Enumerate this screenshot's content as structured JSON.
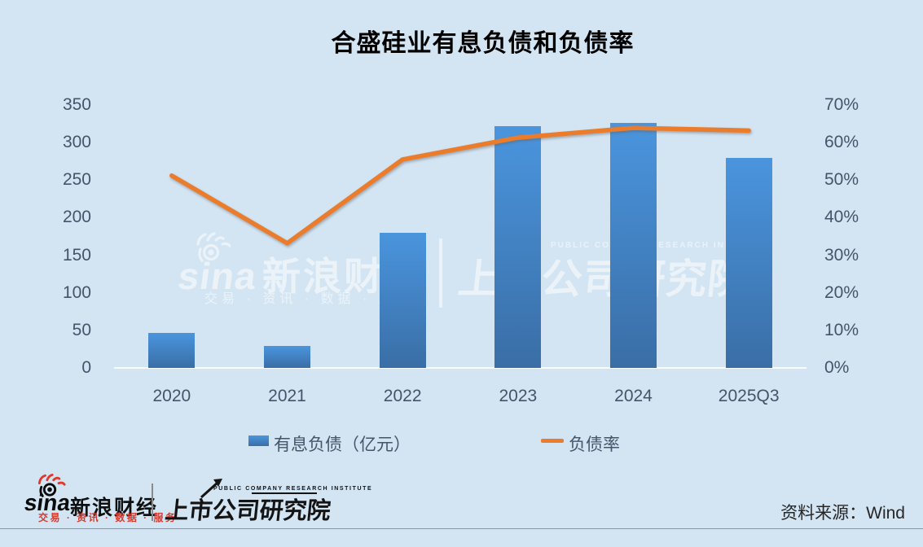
{
  "title": "合盛硅业有息负债和负债率",
  "chart_data": {
    "type": "combo",
    "categories": [
      "2020",
      "2021",
      "2022",
      "2023",
      "2024",
      "2025Q3"
    ],
    "series": [
      {
        "name": "有息负债（亿元）",
        "type": "bar",
        "axis": "left",
        "values": [
          47,
          29,
          180,
          322,
          326,
          280
        ]
      },
      {
        "name": "负债率",
        "type": "line",
        "axis": "right",
        "unit": "%",
        "values": [
          51.2,
          33.2,
          55.5,
          61.3,
          63.9,
          63.2
        ]
      }
    ],
    "left_axis": {
      "min": 0,
      "max": 350,
      "step": 50,
      "tick_labels": [
        "0",
        "50",
        "100",
        "150",
        "200",
        "250",
        "300",
        "350"
      ]
    },
    "right_axis": {
      "min": 0,
      "max": 70,
      "step": 10,
      "tick_labels": [
        "0%",
        "10%",
        "20%",
        "30%",
        "40%",
        "50%",
        "60%",
        "70%"
      ]
    },
    "grid": false,
    "legend_position": "bottom"
  },
  "watermark": {
    "sina_en": "sina",
    "sina_cn": "新浪财经",
    "tagline": "交易 · 资讯 · 数据 · 服务",
    "institute_en": "PUBLIC COMPANY RESEARCH INSTITUTE",
    "institute_cn": "上市公司研究院"
  },
  "footer": {
    "sina_en": "sina",
    "sina_cn": "新浪财经",
    "tagline": "交易 · 资讯 · 数据 · 服务",
    "institute_en": "PUBLIC COMPANY RESEARCH INSTITUTE",
    "institute_cn": "上市公司研究院",
    "source": "资料来源：Wind"
  },
  "colors": {
    "background": "#D3E5F3",
    "bar_top": "#4A95DE",
    "bar_bottom": "#3A6EA6",
    "line": "#EA7C2C",
    "axis_text": "#44546A",
    "sina_red": "#D23B30"
  }
}
